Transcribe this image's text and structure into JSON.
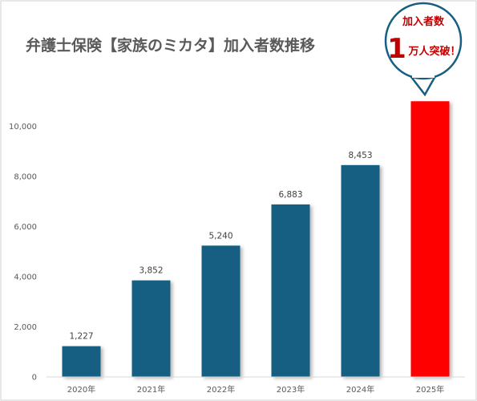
{
  "chart_data": {
    "type": "bar",
    "title": "弁護士保険【家族のミカタ】加入者数推移",
    "categories": [
      "2020年",
      "2021年",
      "2022年",
      "2023年",
      "2024年",
      "2025年"
    ],
    "series": [
      {
        "values": [
          1227,
          3852,
          5240,
          6883,
          8453,
          11000
        ]
      }
    ],
    "data_labels": [
      "1,227",
      "3,852",
      "5,240",
      "6,883",
      "8,453",
      ""
    ],
    "y_ticks": [
      "0",
      "2,000",
      "4,000",
      "6,000",
      "8,000",
      "10,000"
    ],
    "y_tick_values": [
      0,
      2000,
      4000,
      6000,
      8000,
      10000
    ],
    "ylim": [
      0,
      12000
    ],
    "grid": false,
    "legend": "none",
    "colors": {
      "bar": "#165e83",
      "highlight": "#ff0000",
      "callout_text": "#c00000",
      "callout_border": "#165e83"
    },
    "callout": {
      "line1": "加入者数",
      "big": "1",
      "line2": "万人突破！"
    }
  }
}
